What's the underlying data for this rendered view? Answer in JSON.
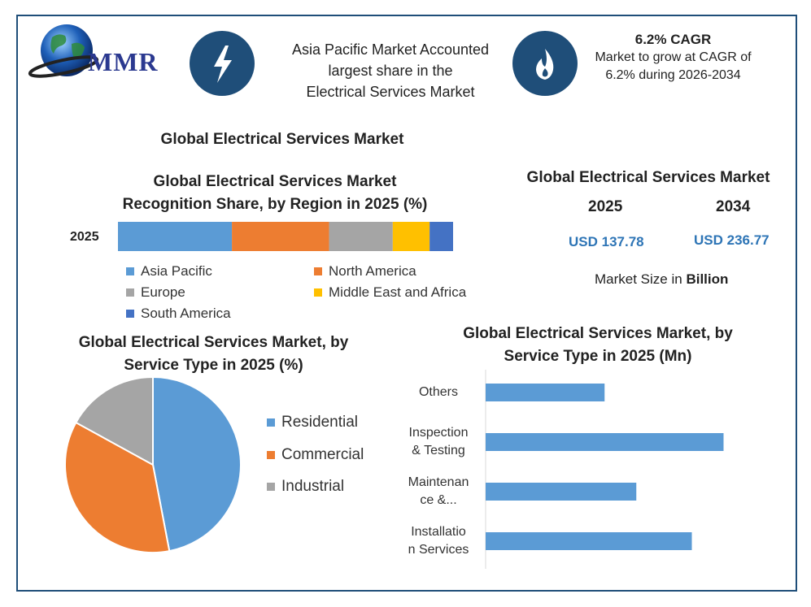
{
  "logo": {
    "brand": "MMR"
  },
  "header": {
    "region_line1": "Asia Pacific Market Accounted",
    "region_line2": "largest share in the",
    "region_line3": "Electrical Services Market",
    "cagr_title": "6.2% CAGR",
    "cagr_line1": "Market to grow at CAGR of",
    "cagr_line2": "6.2% during 2026-2034"
  },
  "main_title": "Global Electrical Services Market",
  "market_size": {
    "title": "Global Electrical Services Market",
    "year1": "2025",
    "year2": "2034",
    "value1": "USD 137.78",
    "value2": "USD 236.77",
    "unit_prefix": "Market Size in ",
    "unit_bold": "Billion"
  },
  "colors": {
    "blue": "#5b9bd5",
    "orange": "#ed7d31",
    "gray": "#a5a5a5",
    "yellow": "#ffc000",
    "dark_blue": "#4472c4",
    "navy": "#1f4e79"
  },
  "chart_data": [
    {
      "type": "bar",
      "orientation": "horizontal-stacked",
      "title_line1": "Global Electrical Services Market",
      "title_line2": "Recognition Share, by Region in 2025 (%)",
      "categories": [
        "2025"
      ],
      "series": [
        {
          "name": "Asia Pacific",
          "values": [
            34
          ]
        },
        {
          "name": "North America",
          "values": [
            29
          ]
        },
        {
          "name": "Europe",
          "values": [
            19
          ]
        },
        {
          "name": "Middle East and Africa",
          "values": [
            11
          ]
        },
        {
          "name": "South America",
          "values": [
            7
          ]
        }
      ]
    },
    {
      "type": "pie",
      "title_line1": "Global Electrical Services Market, by",
      "title_line2": "Service Type in 2025 (%)",
      "labels": [
        "Residential",
        "Commercial",
        "Industrial"
      ],
      "values": [
        47,
        36,
        17
      ]
    },
    {
      "type": "bar",
      "orientation": "horizontal",
      "title_line1": "Global Electrical Services Market, by",
      "title_line2": "Service Type in 2025 (Mn)",
      "categories": [
        [
          "Others"
        ],
        [
          "Inspection",
          "& Testing"
        ],
        [
          "Maintenan",
          "ce &..."
        ],
        [
          "Installatio",
          "n Services"
        ]
      ],
      "values": [
        15,
        30,
        19,
        26
      ],
      "xlim": [
        0,
        32
      ]
    }
  ]
}
